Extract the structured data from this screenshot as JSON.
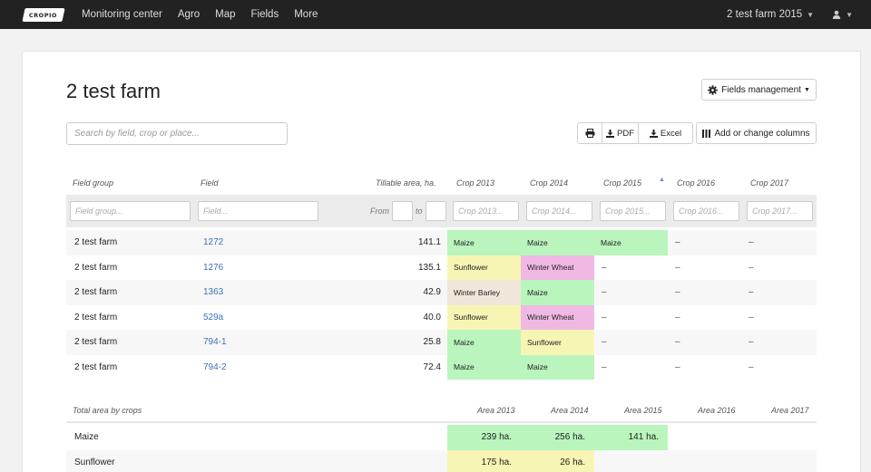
{
  "colors": {
    "navbar": "#222222",
    "maize": "#b9f5bd",
    "sunflower": "#f7f5b4",
    "winter_wheat": "#f0b9e3",
    "winter_barley": "#f1e6da",
    "link": "#3b73b9"
  },
  "nav": {
    "logo": "CROPIO",
    "items": [
      "Monitoring center",
      "Agro",
      "Map",
      "Fields",
      "More"
    ],
    "farm_selector": "2 test farm 2015",
    "user_icon": "user-icon"
  },
  "page": {
    "title": "2 test farm",
    "fields_management": "Fields management",
    "search_placeholder": "Search by field, crop or place...",
    "print_icon": "print-icon",
    "pdf": "PDF",
    "excel": "Excel",
    "columns": "Add or change columns"
  },
  "table": {
    "headers": [
      "Field group",
      "Field",
      "Tillable area, ha.",
      "Crop 2013",
      "Crop 2014",
      "Crop 2015",
      "Crop 2016",
      "Crop 2017"
    ],
    "filters": {
      "field_group": "Field group...",
      "field": "Field...",
      "from": "From",
      "to": "to",
      "crop2013": "Crop 2013...",
      "crop2014": "Crop 2014...",
      "crop2015": "Crop 2015...",
      "crop2016": "Crop 2016...",
      "crop2017": "Crop 2017..."
    },
    "rows": [
      {
        "group": "2 test farm",
        "field": "1272",
        "area": "141.1",
        "c2013": "Maize",
        "c2014": "Maize",
        "c2015": "Maize",
        "c2016": "–",
        "c2017": "–"
      },
      {
        "group": "2 test farm",
        "field": "1276",
        "area": "135.1",
        "c2013": "Sunflower",
        "c2014": "Winter Wheat",
        "c2015": "–",
        "c2016": "–",
        "c2017": "–"
      },
      {
        "group": "2 test farm",
        "field": "1363",
        "area": "42.9",
        "c2013": "Winter Barley",
        "c2014": "Maize",
        "c2015": "–",
        "c2016": "–",
        "c2017": "–"
      },
      {
        "group": "2 test farm",
        "field": "529a",
        "area": "40.0",
        "c2013": "Sunflower",
        "c2014": "Winter Wheat",
        "c2015": "–",
        "c2016": "–",
        "c2017": "–"
      },
      {
        "group": "2 test farm",
        "field": "794-1",
        "area": "25.8",
        "c2013": "Maize",
        "c2014": "Sunflower",
        "c2015": "–",
        "c2016": "–",
        "c2017": "–"
      },
      {
        "group": "2 test farm",
        "field": "794-2",
        "area": "72.4",
        "c2013": "Maize",
        "c2014": "Maize",
        "c2015": "–",
        "c2016": "–",
        "c2017": "–"
      }
    ]
  },
  "summary": {
    "title": "Total area by crops",
    "headers": [
      "Area 2013",
      "Area 2014",
      "Area 2015",
      "Area 2016",
      "Area 2017"
    ],
    "rows": [
      {
        "crop": "Maize",
        "a2013": "239 ha.",
        "a2014": "256 ha.",
        "a2015": "141 ha."
      },
      {
        "crop": "Sunflower",
        "a2013": "175 ha.",
        "a2014": "26 ha.",
        "a2015": ""
      }
    ]
  }
}
